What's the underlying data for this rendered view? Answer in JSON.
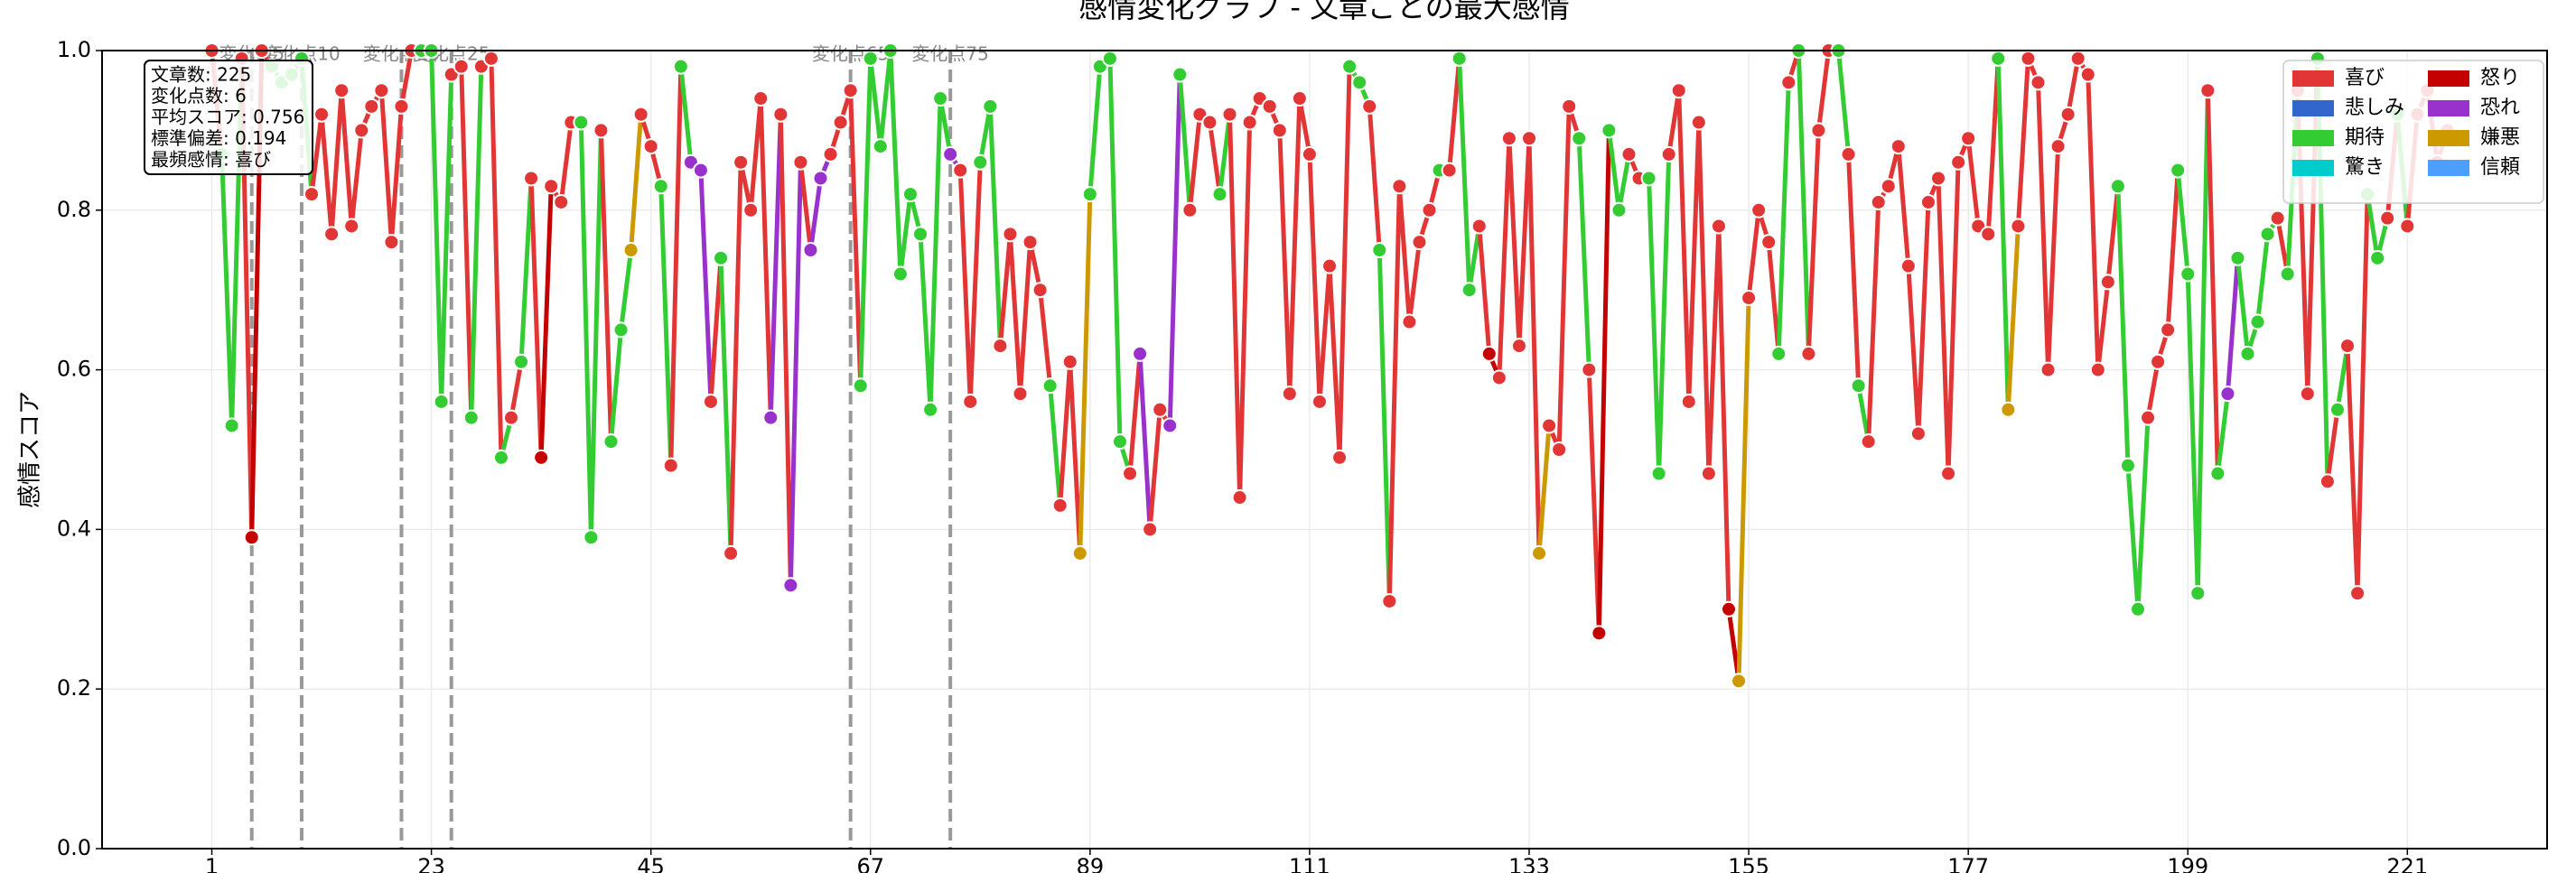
{
  "chart_data": {
    "type": "line",
    "title": "感情変化グラフ - 文章ごとの最大感情",
    "ylabel": "感情スコア",
    "x": [
      1,
      2,
      3,
      4,
      5,
      6,
      7,
      8,
      9,
      10,
      11,
      12,
      13,
      14,
      15,
      16,
      17,
      18,
      19,
      20,
      21,
      22,
      23,
      24,
      25,
      26,
      27,
      28,
      29,
      30,
      31,
      32,
      33,
      34,
      35,
      36,
      37,
      38,
      39,
      40,
      41,
      42,
      43,
      44,
      45,
      46,
      47,
      48,
      49,
      50,
      51,
      52,
      53,
      54,
      55,
      56,
      57,
      58,
      59,
      60,
      61,
      62,
      63,
      64,
      65,
      66,
      67,
      68,
      69,
      70,
      71,
      72,
      73,
      74,
      75,
      76,
      77,
      78,
      79,
      80,
      81,
      82,
      83,
      84,
      85,
      86,
      87,
      88,
      89,
      90,
      91,
      92,
      93,
      94,
      95,
      96,
      97,
      98,
      99,
      100,
      101,
      102,
      103,
      104,
      105,
      106,
      107,
      108,
      109,
      110,
      111,
      112,
      113,
      114,
      115,
      116,
      117,
      118,
      119,
      120,
      121,
      122,
      123,
      124,
      125,
      126,
      127,
      128,
      129,
      130,
      131,
      132,
      133,
      134,
      135,
      136,
      137,
      138,
      139,
      140,
      141,
      142,
      143,
      144,
      145,
      146,
      147,
      148,
      149,
      150,
      151,
      152,
      153,
      154,
      155,
      156,
      157,
      158,
      159,
      160,
      161,
      162,
      163,
      164,
      165,
      166,
      167,
      168,
      169,
      170,
      171,
      172,
      173,
      174,
      175,
      176,
      177,
      178,
      179,
      180,
      181,
      182,
      183,
      184,
      185,
      186,
      187,
      188,
      189,
      190,
      191,
      192,
      193,
      194,
      195,
      196,
      197,
      198,
      199,
      200,
      201,
      202,
      203,
      204,
      205,
      206,
      207,
      208,
      209,
      210,
      211,
      212,
      213,
      214,
      215,
      216,
      217,
      218,
      219,
      220,
      221,
      222,
      223,
      224,
      225
    ],
    "values": [
      1.0,
      0.87,
      0.53,
      0.99,
      0.39,
      1.0,
      0.98,
      0.96,
      0.97,
      0.99,
      0.82,
      0.92,
      0.77,
      0.95,
      0.78,
      0.9,
      0.93,
      0.95,
      0.76,
      0.93,
      1.0,
      1.0,
      1.0,
      0.56,
      0.97,
      0.98,
      0.54,
      0.98,
      0.99,
      0.49,
      0.54,
      0.61,
      0.84,
      0.49,
      0.83,
      0.81,
      0.91,
      0.91,
      0.39,
      0.9,
      0.51,
      0.65,
      0.75,
      0.92,
      0.88,
      0.83,
      0.48,
      0.98,
      0.86,
      0.85,
      0.56,
      0.74,
      0.37,
      0.86,
      0.8,
      0.94,
      0.54,
      0.92,
      0.33,
      0.86,
      0.75,
      0.84,
      0.87,
      0.91,
      0.95,
      0.58,
      0.99,
      0.88,
      1.0,
      0.72,
      0.82,
      0.77,
      0.55,
      0.94,
      0.87,
      0.85,
      0.56,
      0.86,
      0.93,
      0.63,
      0.77,
      0.57,
      0.76,
      0.7,
      0.58,
      0.43,
      0.61,
      0.37,
      0.82,
      0.98,
      0.99,
      0.51,
      0.47,
      0.62,
      0.4,
      0.55,
      0.53,
      0.97,
      0.8,
      0.92,
      0.91,
      0.82,
      0.92,
      0.44,
      0.91,
      0.94,
      0.93,
      0.9,
      0.57,
      0.94,
      0.87,
      0.56,
      0.73,
      0.49,
      0.98,
      0.96,
      0.93,
      0.75,
      0.31,
      0.83,
      0.66,
      0.76,
      0.8,
      0.85,
      0.85,
      0.99,
      0.7,
      0.78,
      0.62,
      0.59,
      0.89,
      0.63,
      0.89,
      0.37,
      0.53,
      0.5,
      0.93,
      0.89,
      0.6,
      0.27,
      0.9,
      0.8,
      0.87,
      0.84,
      0.84,
      0.47,
      0.87,
      0.95,
      0.56,
      0.91,
      0.47,
      0.78,
      0.3,
      0.21,
      0.69,
      0.8,
      0.76,
      0.62,
      0.96,
      1.0,
      0.62,
      0.9,
      1.0,
      1.0,
      0.87,
      0.58,
      0.51,
      0.81,
      0.83,
      0.88,
      0.73,
      0.52,
      0.81,
      0.84,
      0.47,
      0.86,
      0.89,
      0.78,
      0.77,
      0.99,
      0.55,
      0.78,
      0.99,
      0.96,
      0.6,
      0.88,
      0.92,
      0.99,
      0.97,
      0.6,
      0.71,
      0.83,
      0.48,
      0.3,
      0.54,
      0.61,
      0.65,
      0.85,
      0.72,
      0.32,
      0.95,
      0.47,
      0.57,
      0.74,
      0.62,
      0.66,
      0.77,
      0.79,
      0.72,
      0.95,
      0.57,
      0.99,
      0.46,
      0.55,
      0.63,
      0.32,
      0.82,
      0.74,
      0.79,
      0.92,
      0.78,
      0.92,
      0.95,
      0.86,
      0.9
    ],
    "point_emotions": [
      "喜び",
      "期待",
      "期待",
      "喜び",
      "怒り",
      "喜び",
      "期待",
      "期待",
      "期待",
      "期待",
      "喜び",
      "喜び",
      "喜び",
      "喜び",
      "喜び",
      "喜び",
      "喜び",
      "喜び",
      "喜び",
      "喜び",
      "喜び",
      "期待",
      "期待",
      "期待",
      "喜び",
      "喜び",
      "期待",
      "喜び",
      "喜び",
      "期待",
      "喜び",
      "期待",
      "喜び",
      "怒り",
      "喜び",
      "喜び",
      "喜び",
      "期待",
      "期待",
      "喜び",
      "期待",
      "期待",
      "嫌悪",
      "喜び",
      "喜び",
      "期待",
      "喜び",
      "期待",
      "恐れ",
      "恐れ",
      "喜び",
      "期待",
      "喜び",
      "喜び",
      "喜び",
      "喜び",
      "恐れ",
      "喜び",
      "恐れ",
      "喜び",
      "恐れ",
      "恐れ",
      "喜び",
      "喜び",
      "喜び",
      "期待",
      "期待",
      "期待",
      "期待",
      "期待",
      "期待",
      "期待",
      "期待",
      "期待",
      "恐れ",
      "喜び",
      "喜び",
      "期待",
      "期待",
      "喜び",
      "喜び",
      "喜び",
      "喜び",
      "喜び",
      "期待",
      "喜び",
      "喜び",
      "嫌悪",
      "期待",
      "期待",
      "期待",
      "期待",
      "喜び",
      "恐れ",
      "喜び",
      "喜び",
      "恐れ",
      "期待",
      "喜び",
      "喜び",
      "喜び",
      "期待",
      "喜び",
      "喜び",
      "喜び",
      "喜び",
      "喜び",
      "喜び",
      "喜び",
      "喜び",
      "喜び",
      "喜び",
      "喜び",
      "喜び",
      "期待",
      "期待",
      "喜び",
      "期待",
      "喜び",
      "喜び",
      "喜び",
      "喜び",
      "喜び",
      "期待",
      "喜び",
      "期待",
      "期待",
      "喜び",
      "怒り",
      "喜び",
      "喜び",
      "喜び",
      "喜び",
      "嫌悪",
      "喜び",
      "喜び",
      "喜び",
      "期待",
      "喜び",
      "怒り",
      "期待",
      "期待",
      "喜び",
      "喜び",
      "期待",
      "期待",
      "喜び",
      "喜び",
      "喜び",
      "喜び",
      "喜び",
      "喜び",
      "怒り",
      "嫌悪",
      "喜び",
      "喜び",
      "喜び",
      "期待",
      "喜び",
      "期待",
      "喜び",
      "喜び",
      "喜び",
      "期待",
      "喜び",
      "期待",
      "喜び",
      "喜び",
      "喜び",
      "喜び",
      "喜び",
      "喜び",
      "喜び",
      "喜び",
      "喜び",
      "喜び",
      "喜び",
      "喜び",
      "喜び",
      "期待",
      "嫌悪",
      "喜び",
      "喜び",
      "喜び",
      "喜び",
      "喜び",
      "喜び",
      "喜び",
      "喜び",
      "喜び",
      "喜び",
      "期待",
      "期待",
      "期待",
      "喜び",
      "喜び",
      "喜び",
      "期待",
      "期待",
      "期待",
      "喜び",
      "期待",
      "恐れ",
      "期待",
      "期待",
      "期待",
      "期待",
      "喜び",
      "期待",
      "喜び",
      "喜び",
      "期待",
      "喜び",
      "期待",
      "喜び",
      "喜び",
      "期待",
      "期待",
      "喜び",
      "期待",
      "喜び",
      "喜び",
      "喜び",
      "喜び",
      "喜び"
    ],
    "series": [
      {
        "name": "喜び",
        "color": "#e23636"
      },
      {
        "name": "悲しみ",
        "color": "#3366cc"
      },
      {
        "name": "期待",
        "color": "#33cc33"
      },
      {
        "name": "驚き",
        "color": "#00cccc"
      },
      {
        "name": "怒り",
        "color": "#c40000"
      },
      {
        "name": "恐れ",
        "color": "#9932cc"
      },
      {
        "name": "嫌悪",
        "color": "#cc9900"
      },
      {
        "name": "信頼",
        "color": "#4d9fff"
      }
    ],
    "change_points": [
      {
        "x": 5,
        "label": "変化点5"
      },
      {
        "x": 10,
        "label": "変化点10"
      },
      {
        "x": 20,
        "label": "変化点20"
      },
      {
        "x": 25,
        "label": "変化点25"
      },
      {
        "x": 65,
        "label": "変化点65"
      },
      {
        "x": 75,
        "label": "変化点75"
      }
    ],
    "stats_box": [
      "文章数: 225",
      "変化点数: 6",
      "平均スコア: 0.756",
      "標準偏差: 0.194",
      "最頻感情: 喜び"
    ],
    "xlim": [
      -10,
      235
    ],
    "ylim": [
      0,
      1
    ],
    "xticks": [
      1,
      23,
      45,
      67,
      89,
      111,
      133,
      155,
      177,
      199,
      221
    ],
    "yticks": [
      {
        "value": 0,
        "label": "0.0"
      },
      0.2,
      0.4,
      0.6,
      0.8,
      {
        "value": 1,
        "label": "1.0"
      }
    ],
    "grid": true,
    "legend": "upper right"
  }
}
